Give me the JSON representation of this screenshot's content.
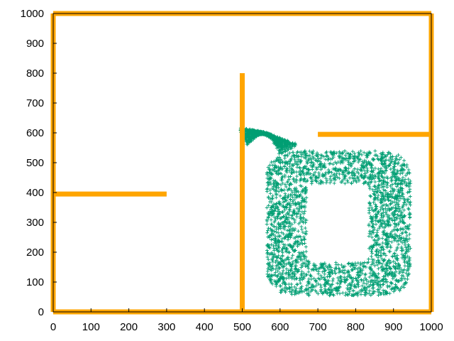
{
  "chart_data": {
    "type": "scatter",
    "title": "",
    "xlabel": "",
    "ylabel": "",
    "xlim": [
      0,
      1000
    ],
    "ylim": [
      0,
      1000
    ],
    "xticks": [
      "0",
      "100",
      "200",
      "300",
      "400",
      "500",
      "600",
      "700",
      "800",
      "900",
      "1000"
    ],
    "yticks": [
      "0",
      "100",
      "200",
      "300",
      "400",
      "500",
      "600",
      "700",
      "800",
      "900",
      "1000"
    ],
    "grid": false,
    "legend": "none",
    "obstacles": {
      "color": "#FFA500",
      "segments": [
        {
          "x": [
            0,
            1000
          ],
          "y": [
            0,
            0
          ]
        },
        {
          "x": [
            0,
            1000
          ],
          "y": [
            1000,
            1000
          ]
        },
        {
          "x": [
            0,
            0
          ],
          "y": [
            0,
            1000
          ]
        },
        {
          "x": [
            1000,
            1000
          ],
          "y": [
            0,
            1000
          ]
        },
        {
          "x": [
            0,
            300
          ],
          "y": [
            395,
            395
          ]
        },
        {
          "x": [
            500,
            500
          ],
          "y": [
            0,
            800
          ]
        },
        {
          "x": [
            700,
            1000
          ],
          "y": [
            595,
            595
          ]
        }
      ]
    },
    "trajectory": {
      "color": "#009E73",
      "outer_loop": {
        "x_min": 565,
        "x_max": 945,
        "y_min": 55,
        "y_max": 540
      },
      "inner_hole": {
        "x_min": 670,
        "x_max": 835,
        "y_min": 165,
        "y_max": 430
      },
      "entry_arc": {
        "start": [
          500,
          585
        ],
        "peak": [
          555,
          630
        ],
        "join": [
          620,
          545
        ]
      }
    }
  }
}
